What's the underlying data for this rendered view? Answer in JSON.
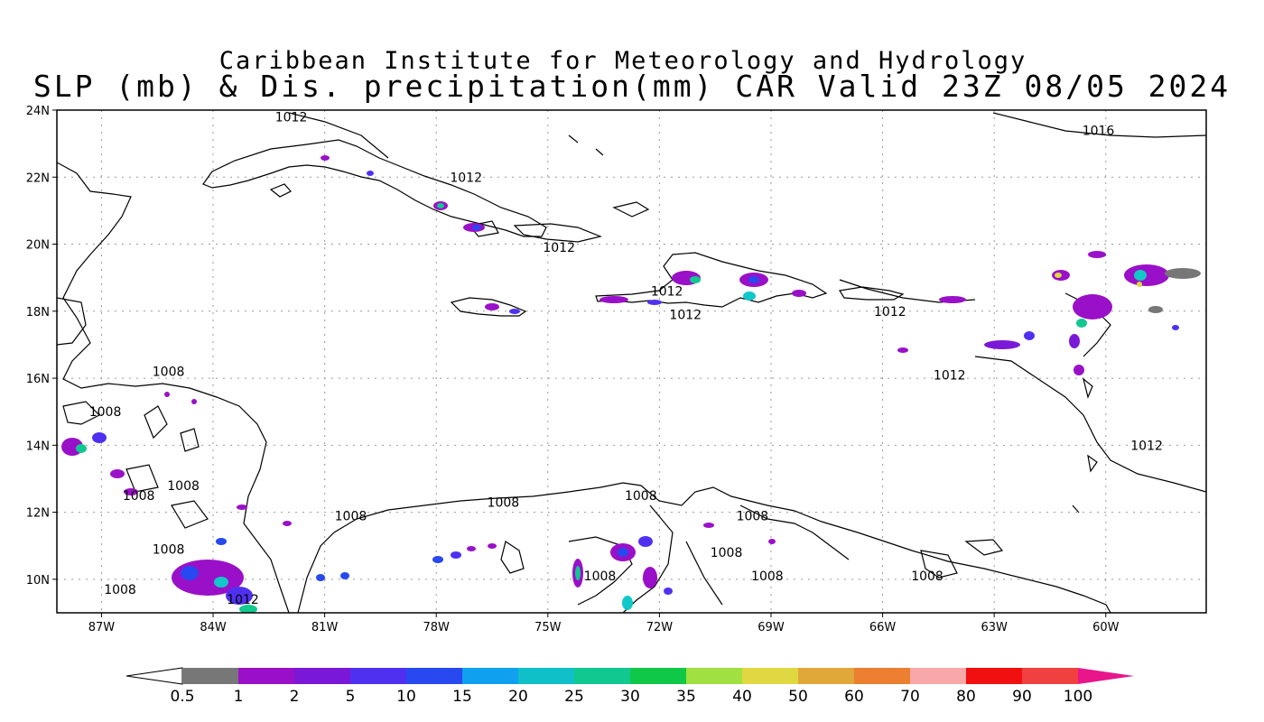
{
  "title": {
    "line1": "Caribbean Institute for Meteorology and Hydrology",
    "line2": "SLP (mb) & Dis. precipitation(mm) CAR Valid 23Z 08/05 2024"
  },
  "map": {
    "lon_range": [
      -88.2,
      -57.3
    ],
    "lat_range": [
      9.0,
      24.0
    ],
    "lat_ticks": [
      {
        "lat": 24,
        "label": "24N"
      },
      {
        "lat": 22,
        "label": "22N"
      },
      {
        "lat": 20,
        "label": "20N"
      },
      {
        "lat": 18,
        "label": "18N"
      },
      {
        "lat": 16,
        "label": "16N"
      },
      {
        "lat": 14,
        "label": "14N"
      },
      {
        "lat": 12,
        "label": "12N"
      },
      {
        "lat": 10,
        "label": "10N"
      }
    ],
    "lon_ticks": [
      {
        "lon": -87,
        "label": "87W"
      },
      {
        "lon": -84,
        "label": "84W"
      },
      {
        "lon": -81,
        "label": "81W"
      },
      {
        "lon": -78,
        "label": "78W"
      },
      {
        "lon": -75,
        "label": "75W"
      },
      {
        "lon": -72,
        "label": "72W"
      },
      {
        "lon": -69,
        "label": "69W"
      },
      {
        "lon": -66,
        "label": "66W"
      },
      {
        "lon": -63,
        "label": "63W"
      },
      {
        "lon": -60,
        "label": "60W"
      }
    ],
    "grid": "dotted",
    "isobar_labels": [
      {
        "lon": -81.9,
        "lat": 23.8,
        "text": "1012"
      },
      {
        "lon": -60.2,
        "lat": 23.4,
        "text": "1016"
      },
      {
        "lon": -77.2,
        "lat": 22.0,
        "text": "1012"
      },
      {
        "lon": -74.7,
        "lat": 19.9,
        "text": "1012"
      },
      {
        "lon": -71.8,
        "lat": 18.6,
        "text": "1012"
      },
      {
        "lon": -71.3,
        "lat": 17.9,
        "text": "1012"
      },
      {
        "lon": -65.8,
        "lat": 18.0,
        "text": "1012"
      },
      {
        "lon": -64.2,
        "lat": 16.1,
        "text": "1012"
      },
      {
        "lon": -58.9,
        "lat": 14.0,
        "text": "1012"
      },
      {
        "lon": -85.2,
        "lat": 16.2,
        "text": "1008"
      },
      {
        "lon": -86.9,
        "lat": 15.0,
        "text": "1008"
      },
      {
        "lon": -84.8,
        "lat": 12.8,
        "text": "1008"
      },
      {
        "lon": -86.0,
        "lat": 12.5,
        "text": "1008"
      },
      {
        "lon": -85.2,
        "lat": 10.9,
        "text": "1008"
      },
      {
        "lon": -86.5,
        "lat": 9.7,
        "text": "1008"
      },
      {
        "lon": -83.2,
        "lat": 9.4,
        "text": "1012"
      },
      {
        "lon": -80.3,
        "lat": 11.9,
        "text": "1008"
      },
      {
        "lon": -76.2,
        "lat": 12.3,
        "text": "1008"
      },
      {
        "lon": -72.5,
        "lat": 12.5,
        "text": "1008"
      },
      {
        "lon": -69.5,
        "lat": 11.9,
        "text": "1008"
      },
      {
        "lon": -70.2,
        "lat": 10.8,
        "text": "1008"
      },
      {
        "lon": -73.6,
        "lat": 10.1,
        "text": "1008"
      },
      {
        "lon": -69.1,
        "lat": 10.1,
        "text": "1008"
      },
      {
        "lon": -64.8,
        "lat": 10.1,
        "text": "1008"
      }
    ]
  },
  "colorbar": {
    "labels": [
      "0.5",
      "1",
      "2",
      "5",
      "10",
      "15",
      "20",
      "25",
      "30",
      "35",
      "40",
      "50",
      "60",
      "70",
      "80",
      "90",
      "100"
    ],
    "colors": [
      "#777777",
      "#9a10c8",
      "#7a18d8",
      "#5030f0",
      "#2848f0",
      "#10a0f0",
      "#10c0c8",
      "#10c890",
      "#10c848",
      "#a0e040",
      "#e0d840",
      "#e0a838",
      "#ec8030",
      "#f8a8a8",
      "#f01010",
      "#f04040"
    ],
    "low_end_color": "#ffffff",
    "high_end_color": "#e8168a"
  }
}
